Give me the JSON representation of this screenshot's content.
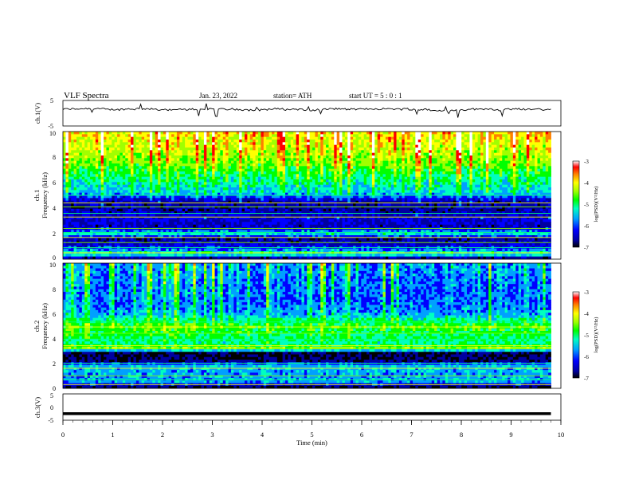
{
  "header": {
    "title": "VLF  Spectra",
    "date": "Jan.  23,  2022",
    "station": "station= ATH",
    "start": "start  UT  =    5  : 0   : 1"
  },
  "chart_data": [
    {
      "type": "line",
      "panel": "ch1-waveform",
      "ylabel": "ch.1(V)",
      "ylim": [
        -5,
        5
      ],
      "yticks": [
        "5",
        "-5"
      ],
      "xlim": [
        0,
        10
      ],
      "x_extent_min": [
        0,
        9.8
      ],
      "trace_level_V": 1.5,
      "trace_color": "#000000"
    },
    {
      "type": "heatmap",
      "panel": "ch1-spectrogram",
      "ylabel": "Frequency  (kHz)",
      "channel_label": "ch.1",
      "ylim": [
        0,
        10
      ],
      "yticks": [
        "0",
        "2",
        "4",
        "6",
        "8",
        "10"
      ],
      "xlim": [
        0,
        10
      ],
      "x_extent_min": [
        0,
        9.8
      ],
      "colorbar": {
        "label": "log(PSD)(V²/Hz)",
        "range": [
          -7,
          -3
        ],
        "ticks": [
          "-3",
          "-4",
          "-5",
          "-6",
          "-7"
        ]
      },
      "band_profile_kHz_logPSD": [
        [
          0,
          -6.8
        ],
        [
          0.4,
          -5.2
        ],
        [
          1.0,
          -6.2
        ],
        [
          1.6,
          -6.5
        ],
        [
          2.0,
          -5.4
        ],
        [
          2.5,
          -6.4
        ],
        [
          3.2,
          -6.2
        ],
        [
          3.9,
          -6.5
        ],
        [
          4.6,
          -6.4
        ],
        [
          5.2,
          -5.6
        ],
        [
          6.5,
          -5.3
        ],
        [
          7.6,
          -4.9
        ],
        [
          8.8,
          -4.6
        ],
        [
          10.0,
          -4.4
        ]
      ]
    },
    {
      "type": "heatmap",
      "panel": "ch2-spectrogram",
      "ylabel": "Frequency  (kHz)",
      "channel_label": "ch.2",
      "ylim": [
        0,
        10
      ],
      "yticks": [
        "0",
        "2",
        "4",
        "6",
        "8",
        "10"
      ],
      "xlim": [
        0,
        10
      ],
      "x_extent_min": [
        0,
        9.8
      ],
      "colorbar": {
        "label": "log(PSD)(V²/Hz)",
        "range": [
          -7,
          -3
        ],
        "ticks": [
          "-3",
          "-4",
          "-5",
          "-6",
          "-7"
        ]
      },
      "band_profile_kHz_logPSD": [
        [
          0,
          -6.9
        ],
        [
          0.5,
          -5.7
        ],
        [
          1.2,
          -5.7
        ],
        [
          1.8,
          -5.6
        ],
        [
          2.2,
          -6.6
        ],
        [
          2.8,
          -6.7
        ],
        [
          3.2,
          -4.6
        ],
        [
          3.5,
          -5.3
        ],
        [
          4.2,
          -5.2
        ],
        [
          5.0,
          -5.0
        ],
        [
          6.0,
          -5.8
        ],
        [
          7.0,
          -6.0
        ],
        [
          8.0,
          -6.0
        ],
        [
          10.0,
          -5.9
        ]
      ]
    },
    {
      "type": "line",
      "panel": "ch3-waveform",
      "ylabel": "ch.3(V)",
      "ylim": [
        -5,
        5
      ],
      "yticks": [
        "5",
        "0",
        "-5"
      ],
      "xlim": [
        0,
        10
      ],
      "x_extent_min": [
        0,
        9.8
      ],
      "trace_level_V": -2.5,
      "trace_color": "#000000"
    }
  ],
  "xaxis": {
    "label": "Time  (min)",
    "ticks": [
      "0",
      "1",
      "2",
      "3",
      "4",
      "5",
      "6",
      "7",
      "8",
      "9",
      "10"
    ]
  },
  "colors": {
    "colormap": [
      "#000000",
      "#0000a0",
      "#0000ff",
      "#00a0ff",
      "#00ffc0",
      "#00ff00",
      "#a0ff00",
      "#ffff00",
      "#ff8000",
      "#ff0000",
      "#ffffff"
    ],
    "axis": "#000000"
  }
}
